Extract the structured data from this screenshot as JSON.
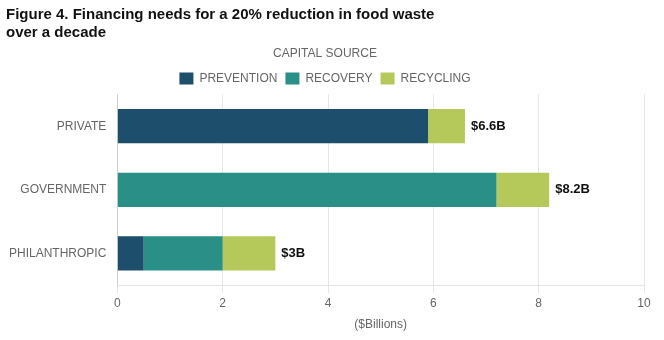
{
  "chart_data": {
    "type": "bar",
    "orientation": "horizontal",
    "stacked": true,
    "title": "Figure 4. Financing needs for a 20% reduction in food waste\nover a decade",
    "categories": [
      "PRIVATE",
      "GOVERNMENT",
      "PHILANTHROPIC"
    ],
    "series": [
      {
        "name": "PREVENTION",
        "color": "#1d4e6b",
        "values": [
          5.9,
          0.0,
          0.5
        ]
      },
      {
        "name": "RECOVERY",
        "color": "#2a9087",
        "values": [
          0.0,
          7.2,
          1.5
        ]
      },
      {
        "name": "RECYCLING",
        "color": "#b5c95a",
        "values": [
          0.7,
          1.0,
          1.0
        ]
      }
    ],
    "legend": "top",
    "legend_title": "CAPITAL SOURCE",
    "totals": [
      6.6,
      8.2,
      3
    ],
    "total_labels": [
      "$6.6B",
      "$8.2B",
      "$3B"
    ],
    "xlabel": "($Billions)",
    "xlim": [
      0,
      10
    ],
    "xticks": [
      0,
      2,
      4,
      6,
      8,
      10
    ],
    "grid": true
  }
}
